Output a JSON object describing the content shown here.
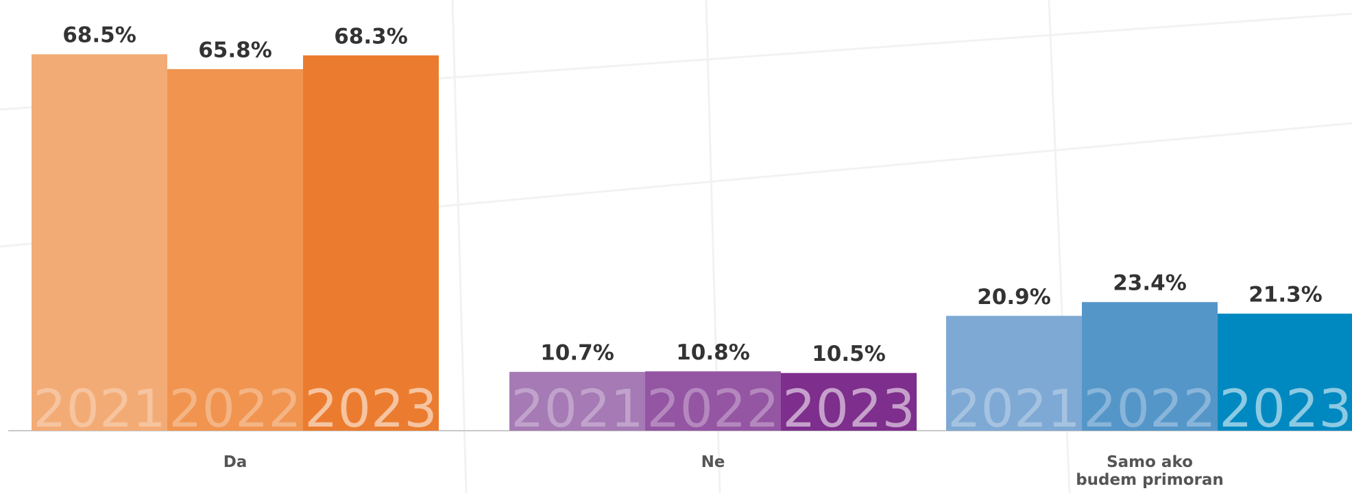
{
  "chart_data": {
    "type": "bar",
    "categories": [
      "Da",
      "Ne",
      "Samo ako\nbudem primoran"
    ],
    "series": [
      {
        "name": "2021",
        "colors": [
          "#f3ab76",
          "#a57ab5",
          "#7ea9d4"
        ],
        "values": [
          68.5,
          10.7,
          20.9
        ],
        "value_labels": [
          "68.5%",
          "10.7%",
          "20.9%"
        ]
      },
      {
        "name": "2022",
        "colors": [
          "#f0944f",
          "#9455a3",
          "#5596c9"
        ],
        "values": [
          65.8,
          10.8,
          23.4
        ],
        "value_labels": [
          "65.8%",
          "10.8%",
          "23.4%"
        ]
      },
      {
        "name": "2023",
        "colors": [
          "#eb7c2f",
          "#7e2e8c",
          "#0089c0"
        ],
        "values": [
          68.3,
          10.5,
          21.3
        ],
        "value_labels": [
          "68.3%",
          "10.5%",
          "21.3%"
        ]
      }
    ],
    "ylim": [
      0,
      78
    ]
  }
}
